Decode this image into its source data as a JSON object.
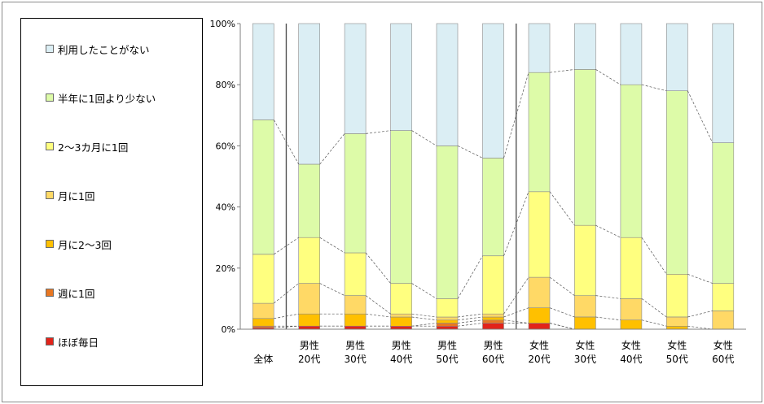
{
  "chart_data": {
    "type": "bar",
    "stacked": true,
    "percent_stacked": true,
    "categories": [
      [
        "全体"
      ],
      [
        "男性",
        "20代"
      ],
      [
        "男性",
        "30代"
      ],
      [
        "男性",
        "40代"
      ],
      [
        "男性",
        "50代"
      ],
      [
        "男性",
        "60代"
      ],
      [
        "女性",
        "20代"
      ],
      [
        "女性",
        "30代"
      ],
      [
        "女性",
        "40代"
      ],
      [
        "女性",
        "50代"
      ],
      [
        "女性",
        "60代"
      ]
    ],
    "series": [
      {
        "name": "ほぼ毎日",
        "color": "#e2231a",
        "values": [
          0.5,
          1,
          1,
          1,
          1,
          2,
          2,
          0,
          0,
          0,
          0
        ]
      },
      {
        "name": "週に1回",
        "color": "#e87722",
        "values": [
          0.5,
          0,
          0,
          0,
          1,
          1,
          0,
          0,
          0,
          0,
          0
        ]
      },
      {
        "name": "月に2～3回",
        "color": "#ffc000",
        "values": [
          2.5,
          4,
          4,
          3,
          1,
          1,
          5,
          4,
          3,
          1,
          0
        ]
      },
      {
        "name": "月に1回",
        "color": "#ffd966",
        "values": [
          5,
          10,
          6,
          1,
          1,
          1,
          10,
          7,
          7,
          3,
          6
        ]
      },
      {
        "name": "2～3カ月に1回",
        "color": "#ffff7f",
        "values": [
          16,
          15,
          14,
          10,
          6,
          19,
          28,
          23,
          20,
          14,
          9
        ]
      },
      {
        "name": "半年に1回より少ない",
        "color": "#ddfba8",
        "values": [
          44,
          24,
          39,
          50,
          50,
          32,
          39,
          51,
          50,
          60,
          46
        ]
      },
      {
        "name": "利用したことがない",
        "color": "#dbeef4",
        "values": [
          31.5,
          46,
          36,
          35,
          40,
          44,
          16,
          15,
          20,
          22,
          39
        ]
      }
    ],
    "y_ticks": [
      "0%",
      "20%",
      "40%",
      "60%",
      "80%",
      "100%"
    ],
    "ylim": [
      0,
      100
    ],
    "legend_position": "left",
    "series_lines": true,
    "group_separators_after": [
      0,
      5
    ]
  }
}
